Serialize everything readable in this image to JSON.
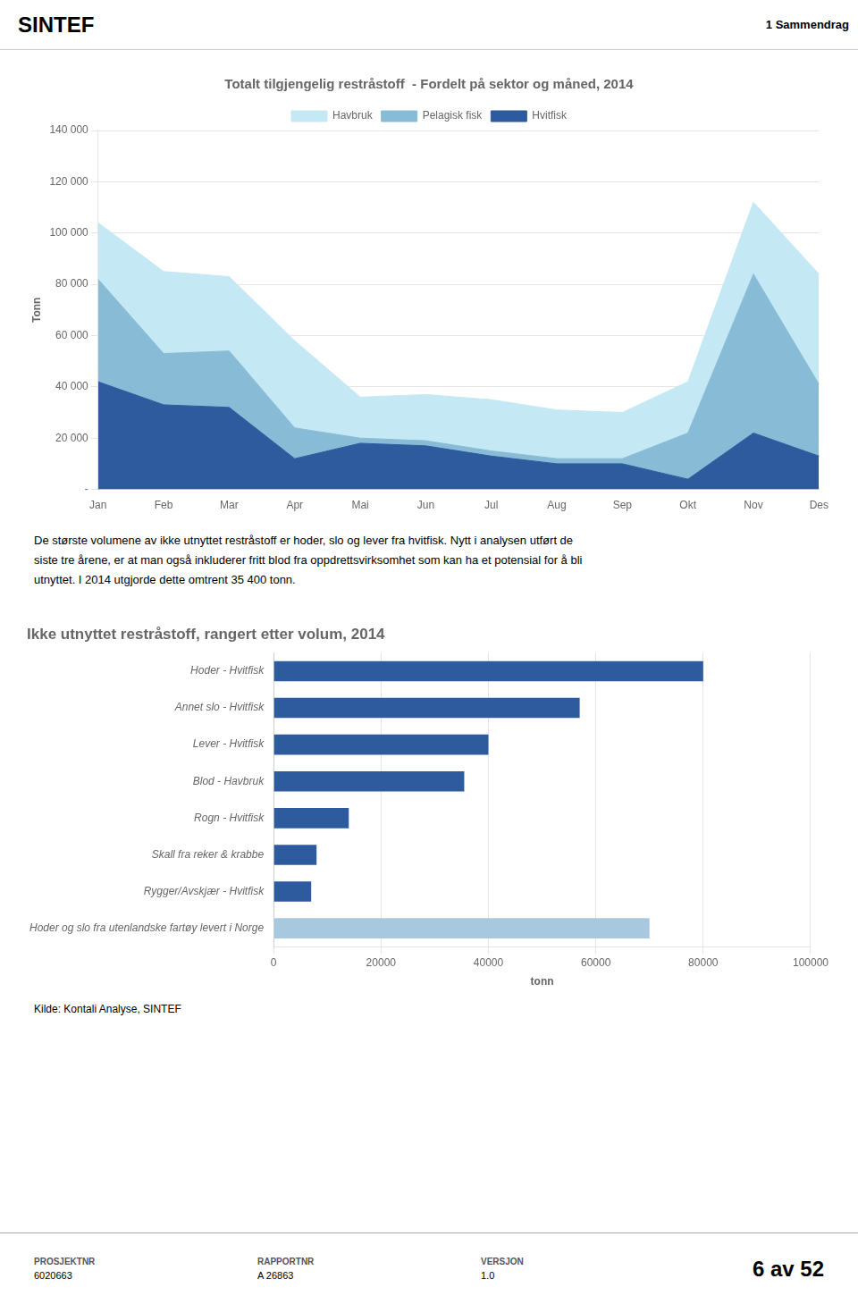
{
  "header_left": "SINTEF",
  "header_right": "1 Sammendrag",
  "text_lines": [
    "De største volumene av ikke utnyttet restråstoff er hoder, slo og lever fra hvitfisk. Nytt i analysen utført de",
    "siste tre årene, er at man også inkluderer fritt blod fra oppdrettsvirksomhet som kan ha et potensial for å bli",
    "utnyttet. I 2014 utgjorde dette omtrent 35 400 tonn."
  ],
  "source_text": "Kilde: Kontali Analyse, SINTEF",
  "footer": [
    {
      "label": "PROSJEKTNR",
      "value": "6020663"
    },
    {
      "label": "RAPPORTNR",
      "value": "A 26863"
    },
    {
      "label": "VERSJON",
      "value": "1.0"
    }
  ],
  "footer_page": "6 av 52",
  "chart_data": [
    {
      "type": "area",
      "title": "Totalt tilgjengelig restråstoff  - Fordelt på sektor og måned, 2014",
      "ylabel": "Tonn",
      "categories": [
        "Jan",
        "Feb",
        "Mar",
        "Apr",
        "Mai",
        "Jun",
        "Jul",
        "Aug",
        "Sep",
        "Okt",
        "Nov",
        "Des"
      ],
      "series": [
        {
          "name": "Hvitfisk",
          "color": "#2d5b9e",
          "values": [
            42000,
            33000,
            32000,
            12000,
            18000,
            17000,
            13000,
            10000,
            10000,
            4000,
            22000,
            13000
          ]
        },
        {
          "name": "Pelagisk fisk",
          "color": "#88bcd6",
          "values": [
            40000,
            20000,
            22000,
            12000,
            2000,
            2000,
            2000,
            2000,
            2000,
            18000,
            62000,
            28000
          ]
        },
        {
          "name": "Havbruk",
          "color": "#c5e8f5",
          "values": [
            22000,
            32000,
            29000,
            34000,
            16000,
            18000,
            20000,
            19000,
            18000,
            20000,
            28000,
            43000
          ]
        }
      ],
      "stacked": true,
      "ylim": [
        0,
        140000
      ],
      "yticks": [
        {
          "value": 0,
          "label": "-"
        },
        {
          "value": 20000,
          "label": "20 000"
        },
        {
          "value": 40000,
          "label": "40 000"
        },
        {
          "value": 60000,
          "label": "60 000"
        },
        {
          "value": 80000,
          "label": "80 000"
        },
        {
          "value": 100000,
          "label": "100 000"
        },
        {
          "value": 120000,
          "label": "120 000"
        },
        {
          "value": 140000,
          "label": "140 000"
        }
      ],
      "grid": true,
      "legend": "top"
    },
    {
      "type": "bar",
      "orientation": "horizontal",
      "title": "Ikke utnyttet restråstoff, rangert etter volum, 2014",
      "xlabel": "tonn",
      "categories": [
        "Hoder - Hvitfisk",
        "Annet slo - Hvitfisk",
        "Lever - Hvitfisk",
        "Blod - Havbruk",
        "Rogn - Hvitfisk",
        "Skall fra reker & krabbe",
        "Rygger/Avskjær - Hvitfisk",
        "Hoder og slo fra utenlandske fartøy levert i Norge"
      ],
      "values": [
        80000,
        57000,
        40000,
        35500,
        14000,
        8000,
        7000,
        70000
      ],
      "colors": [
        "#2d5b9e",
        "#2d5b9e",
        "#2d5b9e",
        "#2d5b9e",
        "#2d5b9e",
        "#2d5b9e",
        "#2d5b9e",
        "#a8c8e0"
      ],
      "xlim": [
        0,
        100000
      ],
      "xticks": [
        0,
        20000,
        40000,
        60000,
        80000,
        100000
      ],
      "grid": true
    }
  ]
}
